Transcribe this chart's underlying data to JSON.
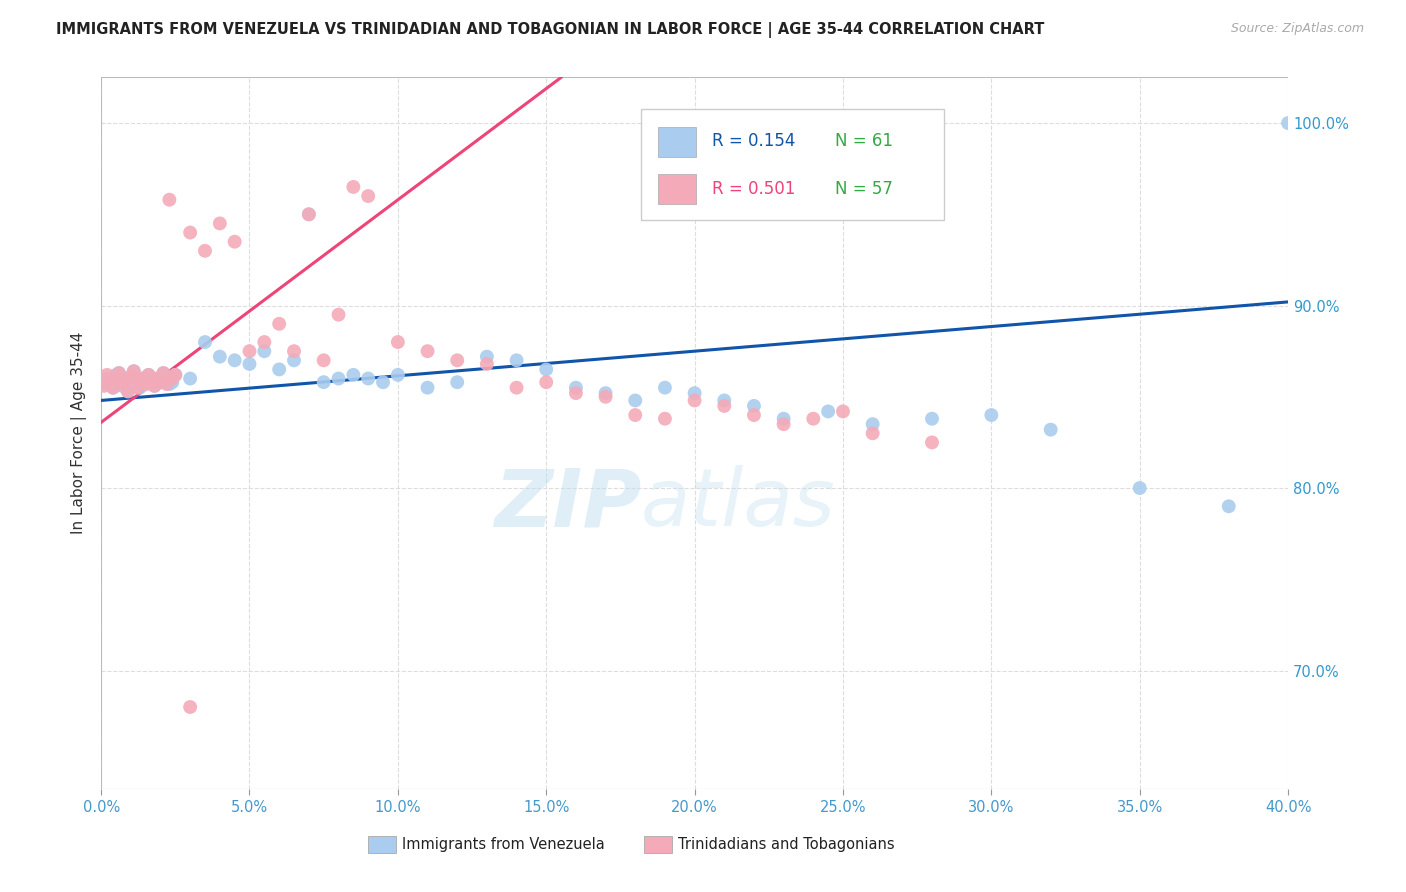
{
  "title": "IMMIGRANTS FROM VENEZUELA VS TRINIDADIAN AND TOBAGONIAN IN LABOR FORCE | AGE 35-44 CORRELATION CHART",
  "source": "Source: ZipAtlas.com",
  "ylabel": "In Labor Force | Age 35-44",
  "xlim": [
    0.0,
    0.4
  ],
  "ylim": [
    0.635,
    1.025
  ],
  "xticks": [
    0.0,
    0.05,
    0.1,
    0.15,
    0.2,
    0.25,
    0.3,
    0.35,
    0.4
  ],
  "xtick_labels": [
    "0.0%",
    "5.0%",
    "10.0%",
    "15.0%",
    "20.0%",
    "25.0%",
    "30.0%",
    "35.0%",
    "40.0%"
  ],
  "yticks_right": [
    0.7,
    0.8,
    0.9,
    1.0
  ],
  "blue_color": "#AACCEE",
  "pink_color": "#F4AAB8",
  "blue_line_color": "#1155AA",
  "pink_line_color": "#EE4477",
  "legend_r_blue": "R = 0.154",
  "legend_n_blue": "N = 61",
  "legend_r_pink": "R = 0.501",
  "legend_n_pink": "N = 57",
  "watermark_zip": "ZIP",
  "watermark_atlas": "atlas",
  "grid_color": "#DDDDDD",
  "background_color": "#FFFFFF",
  "blue_tick_color": "#4499CC",
  "right_tick_color": "#3399CC",
  "blue_scatter_x": [
    0.001,
    0.002,
    0.003,
    0.004,
    0.005,
    0.006,
    0.007,
    0.008,
    0.009,
    0.01,
    0.011,
    0.012,
    0.013,
    0.014,
    0.015,
    0.016,
    0.017,
    0.018,
    0.019,
    0.02,
    0.021,
    0.022,
    0.023,
    0.024,
    0.025,
    0.03,
    0.035,
    0.04,
    0.045,
    0.05,
    0.055,
    0.06,
    0.065,
    0.07,
    0.075,
    0.08,
    0.085,
    0.09,
    0.095,
    0.1,
    0.11,
    0.12,
    0.13,
    0.14,
    0.15,
    0.16,
    0.17,
    0.18,
    0.19,
    0.2,
    0.21,
    0.22,
    0.23,
    0.245,
    0.26,
    0.28,
    0.3,
    0.32,
    0.35,
    0.38,
    0.4
  ],
  "blue_scatter_y": [
    0.857,
    0.86,
    0.858,
    0.855,
    0.862,
    0.863,
    0.856,
    0.859,
    0.853,
    0.861,
    0.864,
    0.858,
    0.855,
    0.86,
    0.857,
    0.862,
    0.858,
    0.856,
    0.86,
    0.858,
    0.863,
    0.86,
    0.857,
    0.858,
    0.862,
    0.86,
    0.88,
    0.872,
    0.87,
    0.868,
    0.875,
    0.865,
    0.87,
    0.95,
    0.858,
    0.86,
    0.862,
    0.86,
    0.858,
    0.862,
    0.855,
    0.858,
    0.872,
    0.87,
    0.865,
    0.855,
    0.852,
    0.848,
    0.855,
    0.852,
    0.848,
    0.845,
    0.838,
    0.842,
    0.835,
    0.838,
    0.84,
    0.832,
    0.8,
    0.79,
    1.0
  ],
  "pink_scatter_x": [
    0.001,
    0.002,
    0.003,
    0.004,
    0.005,
    0.006,
    0.007,
    0.008,
    0.009,
    0.01,
    0.011,
    0.012,
    0.013,
    0.014,
    0.015,
    0.016,
    0.017,
    0.018,
    0.019,
    0.02,
    0.021,
    0.022,
    0.023,
    0.024,
    0.025,
    0.03,
    0.035,
    0.04,
    0.045,
    0.05,
    0.055,
    0.06,
    0.065,
    0.07,
    0.075,
    0.08,
    0.085,
    0.09,
    0.1,
    0.11,
    0.12,
    0.13,
    0.14,
    0.15,
    0.16,
    0.17,
    0.18,
    0.19,
    0.2,
    0.21,
    0.22,
    0.23,
    0.24,
    0.25,
    0.26,
    0.28,
    0.03
  ],
  "pink_scatter_y": [
    0.856,
    0.862,
    0.858,
    0.855,
    0.86,
    0.863,
    0.857,
    0.859,
    0.853,
    0.861,
    0.864,
    0.855,
    0.858,
    0.86,
    0.857,
    0.862,
    0.858,
    0.856,
    0.86,
    0.858,
    0.863,
    0.857,
    0.958,
    0.86,
    0.862,
    0.94,
    0.93,
    0.945,
    0.935,
    0.875,
    0.88,
    0.89,
    0.875,
    0.95,
    0.87,
    0.895,
    0.965,
    0.96,
    0.88,
    0.875,
    0.87,
    0.868,
    0.855,
    0.858,
    0.852,
    0.85,
    0.84,
    0.838,
    0.848,
    0.845,
    0.84,
    0.835,
    0.838,
    0.842,
    0.83,
    0.825,
    0.68
  ],
  "blue_line_x": [
    0.0,
    0.4
  ],
  "blue_line_y": [
    0.848,
    0.902
  ],
  "pink_line_x": [
    0.0,
    0.155
  ],
  "pink_line_y": [
    0.836,
    1.025
  ]
}
